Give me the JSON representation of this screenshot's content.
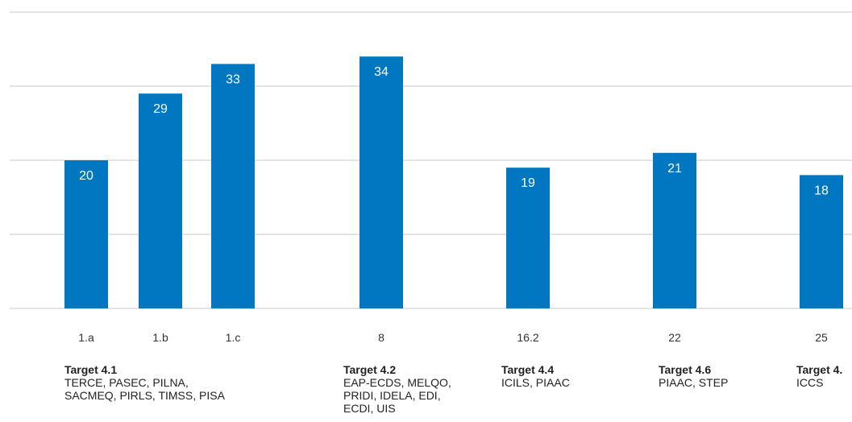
{
  "chart_data": {
    "type": "bar",
    "categories": [
      "1.a",
      "1.b",
      "1.c",
      "8",
      "16.2",
      "22",
      "25"
    ],
    "values": [
      20,
      29,
      33,
      34,
      19,
      21,
      18
    ],
    "ylim": [
      0,
      40
    ],
    "grid": true,
    "colors": {
      "bar": "#0077c0",
      "value_label": "#ffffff",
      "grid": "#c8c8c8"
    },
    "groups": [
      {
        "title": "Target 4.1",
        "desc": "TERCE, PASEC, PILNA,\nSACMEQ, PIRLS, TIMSS, PISA"
      },
      {
        "title": "Target 4.2",
        "desc": "EAP-ECDS, MELQO,\nPRIDI, IDELA, EDI,\nECDI, UIS"
      },
      {
        "title": "Target 4.4",
        "desc": "ICILS, PIAAC"
      },
      {
        "title": "Target 4.6",
        "desc": "PIAAC, STEP"
      },
      {
        "title": "Target 4.",
        "desc": "ICCS"
      }
    ]
  }
}
